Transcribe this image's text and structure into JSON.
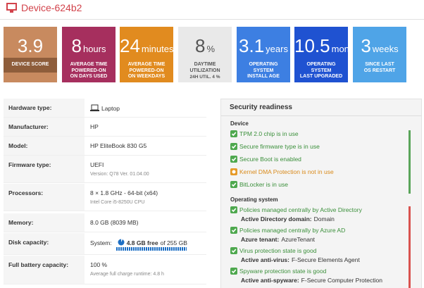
{
  "header": {
    "title": "Device-624b2"
  },
  "tiles": [
    {
      "value": "3.9",
      "label": [
        "DEVICE SCORE"
      ],
      "color": "#c88a5f",
      "text_color": "#ffffff",
      "label_bg": "#8e5d3b"
    },
    {
      "value": "8",
      "unit": "hours",
      "label": [
        "AVERAGE TIME",
        "POWERED-ON",
        "ON DAYS USED"
      ],
      "color": "#a62f5e",
      "text_color": "#ffffff"
    },
    {
      "value": "24",
      "unit": "minutes",
      "label": [
        "AVERAGE TIME",
        "POWERED-ON",
        "ON WEEKDAYS"
      ],
      "color": "#e18b1f",
      "text_color": "#ffffff"
    },
    {
      "value": "8",
      "unit": "%",
      "label": [
        "DAYTIME",
        "UTILIZATION"
      ],
      "sub": "24H UTIL. 4 %",
      "color": "#e9e9e9",
      "text_color": "#555555"
    },
    {
      "value": "3.1",
      "unit": "years",
      "label": [
        "OPERATING",
        "SYSTEM",
        "INSTALL AGE"
      ],
      "color": "#3d7fe2",
      "text_color": "#ffffff"
    },
    {
      "value": "10.5",
      "unit": "month",
      "label": [
        "OPERATING",
        "SYSTEM",
        "LAST UPGRADED"
      ],
      "color": "#1f52d1",
      "text_color": "#ffffff"
    },
    {
      "value": "3",
      "unit": "weeks",
      "label": [
        "SINCE LAST",
        "OS RESTART"
      ],
      "color": "#4fa4e7",
      "text_color": "#ffffff"
    }
  ],
  "hardware": {
    "rows": [
      {
        "label": "Hardware type:",
        "value": "Laptop"
      },
      {
        "label": "Manufacturer:",
        "value": "HP"
      },
      {
        "label": "Model:",
        "value": "HP EliteBook 830 G5"
      },
      {
        "label": "Firmware type:",
        "value": "UEFI",
        "sub": "Version: Q78 Ver. 01.04.00"
      },
      {
        "label": "Processors:",
        "value": "8 × 1.8 GHz - 64-bit (x64)",
        "sub": "Intel Core i5-8250U CPU"
      },
      {
        "label": "Memory:",
        "value": "8.0 GB (8039 MB)"
      },
      {
        "label": "Disk capacity:",
        "value": "System:",
        "free": "4.8 GB free",
        "total": "of 255 GB"
      },
      {
        "label": "Full battery capacity:",
        "value": "100 %",
        "sub": "Average full charge runtime: 4.8 h"
      }
    ]
  },
  "security": {
    "title": "Security readiness",
    "sections": [
      {
        "title": "Device",
        "bar_color": "#5aa55a",
        "items": [
          {
            "text": "TPM 2.0 chip is in use",
            "status": "ok"
          },
          {
            "text": "Secure firmware type is in use",
            "status": "ok"
          },
          {
            "text": "Secure Boot is enabled",
            "status": "ok"
          },
          {
            "text": "Kernel DMA Protection is not in use",
            "status": "warn"
          },
          {
            "text": "BitLocker is in use",
            "status": "ok"
          }
        ]
      },
      {
        "title": "Operating system",
        "bar_color": "#d9534f",
        "items": [
          {
            "text": "Policies managed centrally by Active Directory",
            "status": "ok",
            "detail_label": "Active Directory domain:",
            "detail_value": "Domain"
          },
          {
            "text": "Policies managed centrally by Azure AD",
            "status": "ok",
            "detail_label": "Azure tenant:",
            "detail_value": "AzureTenant"
          },
          {
            "text": "Virus protection state is good",
            "status": "ok",
            "detail_label": "Active anti-virus:",
            "detail_value": "F-Secure Elements Agent"
          },
          {
            "text": "Spyware protection state is good",
            "status": "ok",
            "detail_label": "Active anti-spyware:",
            "detail_value": "F-Secure Computer Protection"
          }
        ]
      }
    ]
  }
}
